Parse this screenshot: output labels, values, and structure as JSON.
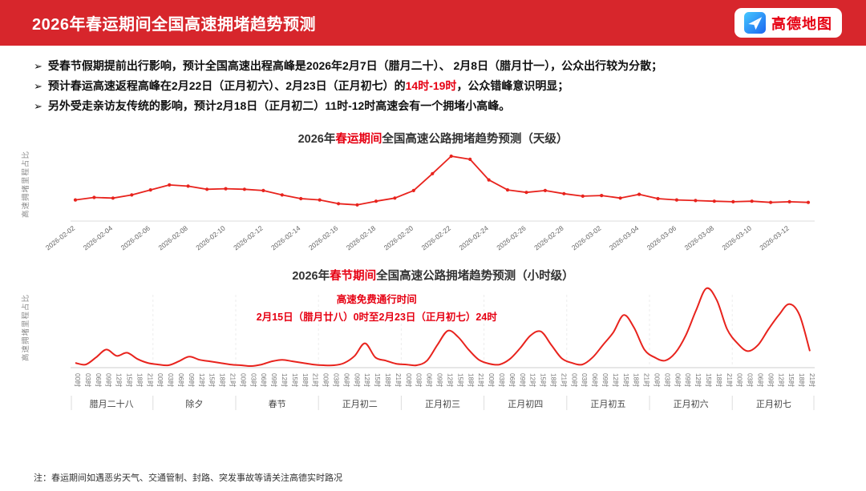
{
  "colors": {
    "header_bg": "#d7262c",
    "accent": "#e60012",
    "line": "#e8231d"
  },
  "header": {
    "title": "2026年春运期间全国高速拥堵趋势预测",
    "brand": "高德地图"
  },
  "bullets": [
    {
      "pre": "受春节假期提前出行影响，预计全国高速出程高峰是2026年2月7日（腊月二十）、 2月8日（腊月廿一），公众出行较为分散；",
      "highlight": "",
      "post": ""
    },
    {
      "pre": "预计春运高速返程高峰在2月22日（正月初六）、2月23日（正月初七）的",
      "highlight": "14时-19时",
      "post": "，公众错峰意识明显；"
    },
    {
      "pre": "另外受走亲访友传统的影响，预计2月18日（正月初二）11时-12时高速会有一个拥堵小高峰。",
      "highlight": "",
      "post": ""
    }
  ],
  "chart_data": [
    {
      "type": "line",
      "title": "2026年春运期间全国高速公路拥堵趋势预测（天级）",
      "title_pre": "2026年",
      "title_highlight": "春运期间",
      "title_post": "全国高速公路拥堵趋势预测（天级）",
      "ylabel": "高速拥堵里程占比",
      "line_color": "#e8231d",
      "markers": true,
      "ylim": [
        0,
        100
      ],
      "tick_every": 2,
      "dates": [
        "2026-02-02",
        "2026-02-03",
        "2026-02-04",
        "2026-02-05",
        "2026-02-06",
        "2026-02-07",
        "2026-02-08",
        "2026-02-09",
        "2026-02-10",
        "2026-02-11",
        "2026-02-12",
        "2026-02-13",
        "2026-02-14",
        "2026-02-15",
        "2026-02-16",
        "2026-02-17",
        "2026-02-18",
        "2026-02-19",
        "2026-02-20",
        "2026-02-21",
        "2026-02-22",
        "2026-02-23",
        "2026-02-24",
        "2026-02-25",
        "2026-02-26",
        "2026-02-27",
        "2026-02-28",
        "2026-03-01",
        "2026-03-02",
        "2026-03-03",
        "2026-03-04",
        "2026-03-05",
        "2026-03-06",
        "2026-03-07",
        "2026-03-08",
        "2026-03-09",
        "2026-03-10",
        "2026-03-11",
        "2026-03-12",
        "2026-03-13"
      ],
      "values": [
        30,
        34,
        33,
        38,
        46,
        54,
        52,
        47,
        48,
        47,
        45,
        38,
        32,
        30,
        24,
        22,
        28,
        33,
        45,
        72,
        100,
        95,
        62,
        46,
        42,
        45,
        40,
        36,
        37,
        33,
        39,
        32,
        30,
        29,
        28,
        27,
        28,
        26,
        27,
        26
      ]
    },
    {
      "type": "line",
      "title": "2026年春节期间全国高速公路拥堵趋势预测（小时级）",
      "title_pre": "2026年",
      "title_highlight": "春节期间",
      "title_post": "全国高速公路拥堵趋势预测（小时级）",
      "subtitle_line1": "高速免费通行时间",
      "subtitle_line2": "2月15日（腊月廿八）0时至2月23日（正月初七）24时",
      "ylabel": "高速拥堵里程占比",
      "line_color": "#e8231d",
      "markers": false,
      "ylim": [
        0,
        100
      ],
      "hour_ticks": [
        "00时",
        "03时",
        "06时",
        "09时",
        "12时",
        "15时",
        "18时",
        "21时"
      ],
      "days": [
        "腊月二十八",
        "除夕",
        "春节",
        "正月初二",
        "正月初三",
        "正月初四",
        "正月初五",
        "正月初六",
        "正月初七"
      ],
      "values_by_day": [
        [
          5,
          3,
          12,
          22,
          14,
          18,
          10,
          5
        ],
        [
          3,
          2,
          7,
          13,
          9,
          7,
          5,
          3
        ],
        [
          2,
          1,
          3,
          7,
          9,
          7,
          5,
          3
        ],
        [
          2,
          2,
          5,
          14,
          30,
          12,
          8,
          4
        ],
        [
          3,
          2,
          8,
          28,
          46,
          38,
          22,
          9
        ],
        [
          4,
          3,
          10,
          24,
          40,
          45,
          28,
          11
        ],
        [
          5,
          3,
          12,
          28,
          44,
          66,
          50,
          22
        ],
        [
          12,
          8,
          18,
          40,
          72,
          100,
          85,
          48
        ],
        [
          30,
          20,
          28,
          48,
          66,
          80,
          66,
          20
        ]
      ]
    }
  ],
  "footnote": "注：春运期间如遇恶劣天气、交通管制、封路、突发事故等请关注高德实时路况"
}
